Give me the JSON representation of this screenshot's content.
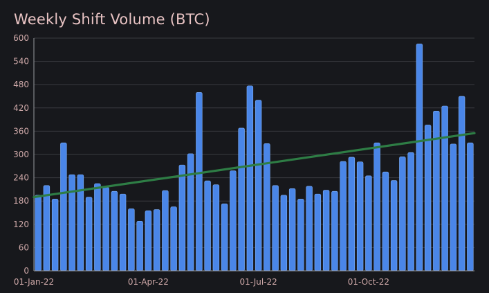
{
  "chart_data": {
    "type": "bar",
    "title": "Weekly Shift Volume (BTC)",
    "xlabel": "",
    "ylabel": "",
    "ylim": [
      0,
      600
    ],
    "yticks": [
      0,
      60,
      120,
      180,
      240,
      300,
      360,
      420,
      480,
      540,
      600
    ],
    "xticks": [
      "01-Jan-22",
      "01-Apr-22",
      "01-Jul-22",
      "01-Oct-22"
    ],
    "xtick_week_index": [
      0,
      13,
      26,
      39
    ],
    "grid": true,
    "colors": {
      "bar": "#4a86e8",
      "bar_edge": "#7fb0f5",
      "trend": "#2e7d45",
      "grid": "#3a3b40",
      "axis": "#cfa9a9",
      "title": "#e8c3c3"
    },
    "series": [
      {
        "type": "bar",
        "values": [
          195,
          220,
          185,
          330,
          248,
          248,
          190,
          225,
          215,
          205,
          198,
          160,
          128,
          155,
          158,
          207,
          165,
          273,
          302,
          460,
          232,
          222,
          173,
          258,
          368,
          477,
          440,
          328,
          220,
          195,
          212,
          185,
          218,
          198,
          208,
          205,
          282,
          293,
          281,
          245,
          330,
          255,
          233,
          294,
          305,
          585,
          376,
          412,
          425,
          327,
          450,
          330
        ]
      },
      {
        "type": "line",
        "trend_start": 190,
        "trend_end": 355
      }
    ]
  }
}
